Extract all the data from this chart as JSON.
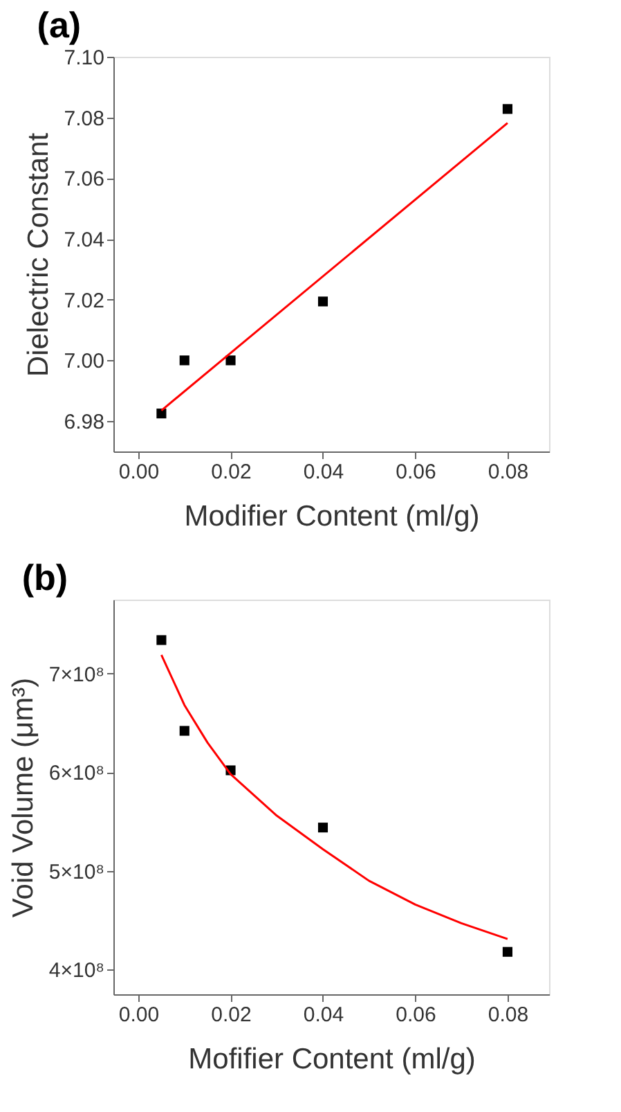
{
  "chart_data": [
    {
      "type": "scatter",
      "title": "(a)",
      "xlabel": "Modifier Content (ml/g)",
      "ylabel": "Dielectric Constant",
      "xlim": [
        -0.0054,
        0.089
      ],
      "ylim": [
        6.97,
        7.1
      ],
      "xticks": [
        {
          "value": 0,
          "label": "0.00"
        },
        {
          "value": 0.02,
          "label": "0.02"
        },
        {
          "value": 0.04,
          "label": "0.04"
        },
        {
          "value": 0.06,
          "label": "0.06"
        },
        {
          "value": 0.08,
          "label": "0.08"
        }
      ],
      "yticks": [
        {
          "value": 6.98,
          "label": "6.98"
        },
        {
          "value": 7.0,
          "label": "7.00"
        },
        {
          "value": 7.02,
          "label": "7.02"
        },
        {
          "value": 7.04,
          "label": "7.04"
        },
        {
          "value": 7.06,
          "label": "7.06"
        },
        {
          "value": 7.08,
          "label": "7.08"
        },
        {
          "value": 7.1,
          "label": "7.10"
        }
      ],
      "series": [
        {
          "color": "#000000",
          "marker": "square",
          "x": [
            0.005,
            0.01,
            0.02,
            0.04,
            0.08
          ],
          "values": [
            6.9825,
            7.0,
            7.0,
            7.0194,
            7.0828
          ]
        },
        {
          "type": "line",
          "color": "#ff0000",
          "line_style": "solid",
          "x": [
            0.005,
            0.08
          ],
          "values": [
            6.9835,
            7.0782
          ]
        }
      ]
    },
    {
      "type": "scatter",
      "title": "(b)",
      "xlabel": "Mofifier Content (ml/g)",
      "ylabel": "Void Volume (μm³)",
      "xlim": [
        -0.0054,
        0.089
      ],
      "ylim": [
        375000000,
        775000000
      ],
      "xticks": [
        {
          "value": 0,
          "label": "0.00"
        },
        {
          "value": 0.02,
          "label": "0.02"
        },
        {
          "value": 0.04,
          "label": "0.04"
        },
        {
          "value": 0.06,
          "label": "0.06"
        },
        {
          "value": 0.08,
          "label": "0.08"
        }
      ],
      "yticks": [
        {
          "value": 400000000,
          "label": "4×10⁸"
        },
        {
          "value": 500000000,
          "label": "5×10⁸"
        },
        {
          "value": 600000000,
          "label": "6×10⁸"
        },
        {
          "value": 700000000,
          "label": "7×10⁸"
        }
      ],
      "series": [
        {
          "color": "#000000",
          "marker": "square",
          "x": [
            0.005,
            0.01,
            0.02,
            0.04,
            0.08
          ],
          "values": [
            734000000,
            642000000,
            602000000,
            544000000,
            418000000
          ]
        },
        {
          "type": "line",
          "color": "#ff0000",
          "line_style": "solid",
          "x": [
            0.005,
            0.01,
            0.015,
            0.02,
            0.03,
            0.04,
            0.05,
            0.06,
            0.07,
            0.08
          ],
          "values": [
            719000000,
            668000000,
            630000000,
            598000000,
            556000000,
            522000000,
            490000000,
            466000000,
            447000000,
            431000000
          ]
        }
      ]
    }
  ]
}
